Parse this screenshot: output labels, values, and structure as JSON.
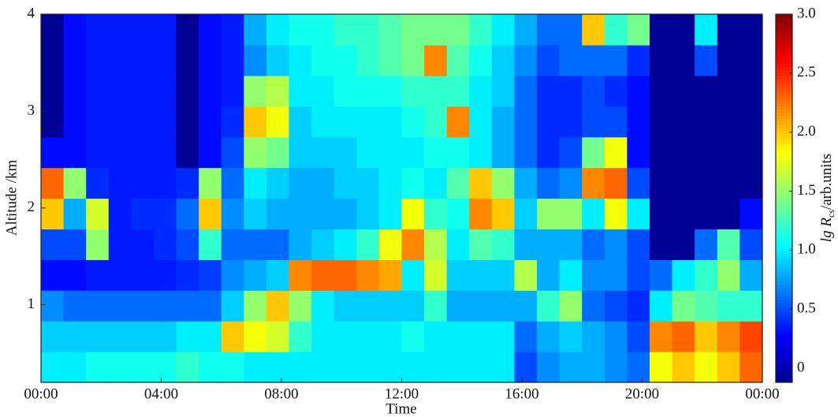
{
  "chart_data": {
    "type": "heatmap",
    "xlabel": "Time",
    "ylabel": "Altitude /km",
    "colorbar_label": {
      "main": "lg R",
      "sub": "cs",
      "rest": "/arb.units"
    },
    "xlim": [
      0,
      24
    ],
    "xticks": [
      {
        "value": 0,
        "label": "00:00"
      },
      {
        "value": 4,
        "label": "04:00"
      },
      {
        "value": 8,
        "label": "08:00"
      },
      {
        "value": 12,
        "label": "12:00"
      },
      {
        "value": 16,
        "label": "16:00"
      },
      {
        "value": 20,
        "label": "20:00"
      },
      {
        "value": 24,
        "label": "00:00"
      }
    ],
    "ylim": [
      0.2,
      4
    ],
    "yticks": [
      1,
      2,
      3,
      4
    ],
    "clim": [
      -0.12,
      3.0
    ],
    "cticks": [
      0,
      0.5,
      {
        "value": 1,
        "label": "1.0"
      },
      1.5,
      {
        "value": 2,
        "label": "2.0"
      },
      2.5,
      {
        "value": 3,
        "label": "3.0"
      }
    ],
    "colormap": [
      "#00008f",
      "#0000ff",
      "#0080ff",
      "#00ffff",
      "#80ff80",
      "#ffff00",
      "#ff8000",
      "#ff0000",
      "#800000"
    ],
    "z": [
      [
        1.0,
        1.0,
        1.1,
        1.1,
        1.1,
        1.1,
        1.2,
        1.1,
        1.1,
        1.0,
        1.0,
        1.0,
        1.0,
        1.0,
        1.0,
        1.0,
        1.0,
        1.0,
        1.0,
        1.0,
        1.0,
        0.5,
        0.7,
        0.8,
        0.8,
        0.7,
        0.6,
        1.8,
        2.0,
        1.8,
        2.0,
        2.3
      ],
      [
        0.9,
        0.9,
        0.9,
        0.9,
        0.9,
        0.9,
        1.0,
        1.0,
        2.0,
        1.8,
        1.7,
        1.2,
        1.0,
        1.0,
        1.0,
        1.0,
        1.1,
        1.0,
        1.0,
        1.0,
        1.0,
        0.6,
        0.8,
        0.9,
        0.8,
        0.7,
        0.5,
        2.2,
        2.3,
        2.0,
        2.2,
        2.4
      ],
      [
        0.7,
        0.6,
        0.6,
        0.6,
        0.6,
        0.6,
        0.6,
        0.6,
        0.9,
        1.5,
        2.0,
        1.5,
        1.0,
        0.9,
        0.9,
        0.9,
        0.9,
        1.2,
        0.8,
        0.8,
        0.8,
        0.8,
        1.2,
        1.5,
        0.6,
        0.5,
        0.4,
        1.0,
        1.4,
        1.3,
        1.2,
        1.2
      ],
      [
        0.3,
        0.3,
        0.35,
        0.35,
        0.35,
        0.35,
        0.4,
        0.45,
        0.7,
        0.8,
        0.9,
        2.2,
        2.3,
        2.3,
        2.2,
        2.1,
        1.0,
        1.7,
        0.9,
        0.9,
        0.9,
        1.6,
        0.8,
        1.0,
        0.7,
        0.7,
        0.5,
        0.6,
        1.0,
        1.2,
        1.5,
        0.8
      ],
      [
        0.5,
        0.5,
        1.5,
        0.35,
        0.35,
        0.4,
        0.5,
        1.2,
        0.6,
        0.6,
        0.6,
        0.8,
        0.9,
        1.0,
        1.2,
        1.8,
        2.2,
        1.6,
        1.0,
        1.3,
        1.2,
        0.8,
        0.8,
        0.8,
        0.6,
        0.7,
        0.5,
        -0.1,
        -0.1,
        0.6,
        1.3,
        0.5
      ],
      [
        2.0,
        0.8,
        1.7,
        0.35,
        0.4,
        0.4,
        0.6,
        2.0,
        0.7,
        0.9,
        0.8,
        0.8,
        0.8,
        0.8,
        0.9,
        1.0,
        1.8,
        1.2,
        1.1,
        2.2,
        2.0,
        0.9,
        1.5,
        1.5,
        1.0,
        1.8,
        1.0,
        -0.1,
        -0.1,
        -0.1,
        -0.1,
        0.3
      ],
      [
        2.3,
        1.5,
        0.4,
        0.35,
        0.35,
        0.35,
        0.4,
        1.5,
        0.6,
        1.0,
        0.9,
        0.8,
        0.8,
        0.9,
        0.9,
        1.0,
        1.1,
        1.0,
        1.3,
        2.0,
        1.5,
        0.8,
        0.6,
        0.7,
        2.2,
        2.3,
        0.5,
        -0.1,
        -0.1,
        -0.1,
        -0.1,
        -0.1
      ],
      [
        0.3,
        0.3,
        0.35,
        0.35,
        0.35,
        0.35,
        -0.1,
        0.3,
        0.5,
        1.5,
        1.4,
        0.9,
        0.9,
        0.9,
        1.0,
        1.0,
        1.0,
        1.1,
        1.1,
        1.0,
        0.8,
        0.6,
        0.4,
        0.5,
        1.4,
        1.8,
        0.3,
        -0.1,
        -0.1,
        -0.1,
        -0.1,
        -0.1
      ],
      [
        -0.1,
        0.3,
        0.35,
        0.35,
        0.35,
        0.35,
        -0.1,
        0.3,
        0.4,
        2.0,
        1.8,
        0.9,
        1.0,
        1.0,
        1.0,
        1.0,
        1.1,
        1.2,
        2.2,
        1.0,
        0.8,
        0.6,
        0.4,
        0.4,
        0.5,
        0.5,
        0.3,
        -0.1,
        -0.1,
        -0.1,
        -0.1,
        -0.1
      ],
      [
        -0.1,
        0.3,
        0.35,
        0.35,
        0.35,
        0.35,
        -0.1,
        0.3,
        0.35,
        1.5,
        1.6,
        1.0,
        1.0,
        1.1,
        1.1,
        1.1,
        1.2,
        1.2,
        1.2,
        1.0,
        0.9,
        0.6,
        0.4,
        0.4,
        0.5,
        0.4,
        0.3,
        -0.1,
        -0.1,
        -0.1,
        -0.1,
        -0.1
      ],
      [
        -0.1,
        0.3,
        0.35,
        0.35,
        0.35,
        0.35,
        -0.1,
        0.3,
        0.35,
        0.7,
        0.9,
        1.0,
        1.1,
        1.1,
        1.2,
        1.3,
        1.4,
        2.2,
        1.3,
        1.1,
        0.9,
        0.7,
        0.5,
        0.6,
        0.6,
        0.6,
        0.4,
        -0.1,
        -0.1,
        0.5,
        -0.1,
        -0.1
      ],
      [
        -0.1,
        0.3,
        0.35,
        0.35,
        0.35,
        0.35,
        -0.1,
        0.3,
        0.35,
        0.8,
        1.0,
        1.1,
        1.1,
        1.2,
        1.2,
        1.3,
        1.4,
        1.4,
        1.4,
        1.2,
        1.0,
        0.8,
        0.6,
        0.6,
        2.0,
        1.2,
        1.4,
        -0.1,
        -0.1,
        1.0,
        -0.1,
        -0.1
      ]
    ]
  }
}
